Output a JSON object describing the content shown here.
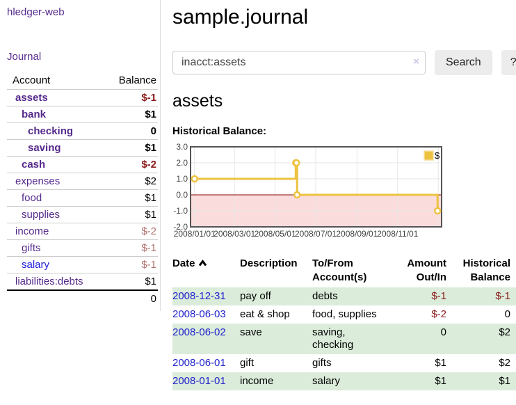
{
  "colors": {
    "link_purple": "#552a8c",
    "link_blue": "#1a1ae0",
    "date_link_blue": "#2222cc",
    "negative_strong": "#8b1a1a",
    "negative_faded": "#b0716f",
    "row_stripe_green": "#dbecdb",
    "chart_line_gold": "#edc240",
    "chart_negative_fill": "#fbdcdc",
    "chart_zero_line": "#8b0000",
    "button_gray": "#ececec"
  },
  "sidebar": {
    "brand": "hledger-web",
    "nav_journal": "Journal",
    "accounts_table": {
      "headers": [
        "Account",
        "Balance"
      ],
      "rows": [
        {
          "name": "assets",
          "depth": 0,
          "bold": true,
          "balance": "$-1",
          "balance_style": "neg-strong"
        },
        {
          "name": "bank",
          "depth": 1,
          "bold": true,
          "balance": "$1",
          "balance_style": "pos"
        },
        {
          "name": "checking",
          "depth": 2,
          "bold": true,
          "balance": "0",
          "balance_style": "pos"
        },
        {
          "name": "saving",
          "depth": 2,
          "bold": true,
          "balance": "$1",
          "balance_style": "pos"
        },
        {
          "name": "cash",
          "depth": 1,
          "bold": true,
          "balance": "$-2",
          "balance_style": "neg-strong"
        },
        {
          "name": "expenses",
          "depth": 0,
          "bold": false,
          "balance": "$2",
          "balance_style": "pos"
        },
        {
          "name": "food",
          "depth": 1,
          "bold": false,
          "balance": "$1",
          "balance_style": "pos"
        },
        {
          "name": "supplies",
          "depth": 1,
          "bold": false,
          "balance": "$1",
          "balance_style": "pos"
        },
        {
          "name": "income",
          "depth": 0,
          "bold": false,
          "balance": "$-2",
          "balance_style": "neg-faded"
        },
        {
          "name": "gifts",
          "depth": 1,
          "bold": false,
          "balance": "$-1",
          "balance_style": "neg-faded"
        },
        {
          "name": "salary",
          "depth": 1,
          "bold": false,
          "link": "blue",
          "balance": "$-1",
          "balance_style": "neg-faded"
        },
        {
          "name": "liabilities:debts",
          "depth": 0,
          "bold": false,
          "balance": "$1",
          "balance_style": "pos"
        }
      ],
      "total": "0"
    }
  },
  "main": {
    "title": "sample.journal",
    "search": {
      "value": "inacct:assets",
      "clear_icon": "×",
      "button_label": "Search",
      "help_label": "?"
    },
    "account_heading": "assets",
    "chart_label": "Historical Balance:"
  },
  "chart_data": {
    "type": "line",
    "subtype": "step",
    "title": "Historical Balance:",
    "legend": [
      {
        "label": "$",
        "color": "#edc240"
      }
    ],
    "legend_position": "top-right",
    "grid": true,
    "y_ticks": [
      "3.0",
      "2.0",
      "1.0",
      "0.0",
      "-1.0",
      "-2.0"
    ],
    "y_range": [
      -2,
      3
    ],
    "x_ticks": [
      "2008/01/01",
      "2008/03/01",
      "2008/05/01",
      "2008/07/01",
      "2008/09/01",
      "2008/11/01"
    ],
    "x_grid_extra": [
      "2009/01/01"
    ],
    "x_domain": [
      "2007/12/26",
      "2009/01/06"
    ],
    "series": [
      {
        "name": "$",
        "points": [
          [
            "2008/01/01",
            1
          ],
          [
            "2008/06/01",
            2
          ],
          [
            "2008/06/02",
            2
          ],
          [
            "2008/06/03",
            0
          ],
          [
            "2008/12/31",
            -1
          ]
        ]
      }
    ],
    "negative_region_below": 0
  },
  "register": {
    "headers": [
      "Date",
      "Description",
      "To/From Account(s)",
      "Amount Out/In",
      "Historical Balance"
    ],
    "rows": [
      {
        "date": "2008-12-31",
        "description": "pay off",
        "accounts": "debts",
        "amount": "$-1",
        "amount_negative": true,
        "balance": "$-1",
        "balance_negative": true
      },
      {
        "date": "2008-06-03",
        "description": "eat & shop",
        "accounts": "food, supplies",
        "amount": "$-2",
        "amount_negative": true,
        "balance": "0",
        "balance_negative": false
      },
      {
        "date": "2008-06-02",
        "description": "save",
        "accounts": "saving, checking",
        "amount": "0",
        "amount_negative": false,
        "balance": "$2",
        "balance_negative": false
      },
      {
        "date": "2008-06-01",
        "description": "gift",
        "accounts": "gifts",
        "amount": "$1",
        "amount_negative": false,
        "balance": "$2",
        "balance_negative": false
      },
      {
        "date": "2008-01-01",
        "description": "income",
        "accounts": "salary",
        "amount": "$1",
        "amount_negative": false,
        "balance": "$1",
        "balance_negative": false
      }
    ]
  }
}
